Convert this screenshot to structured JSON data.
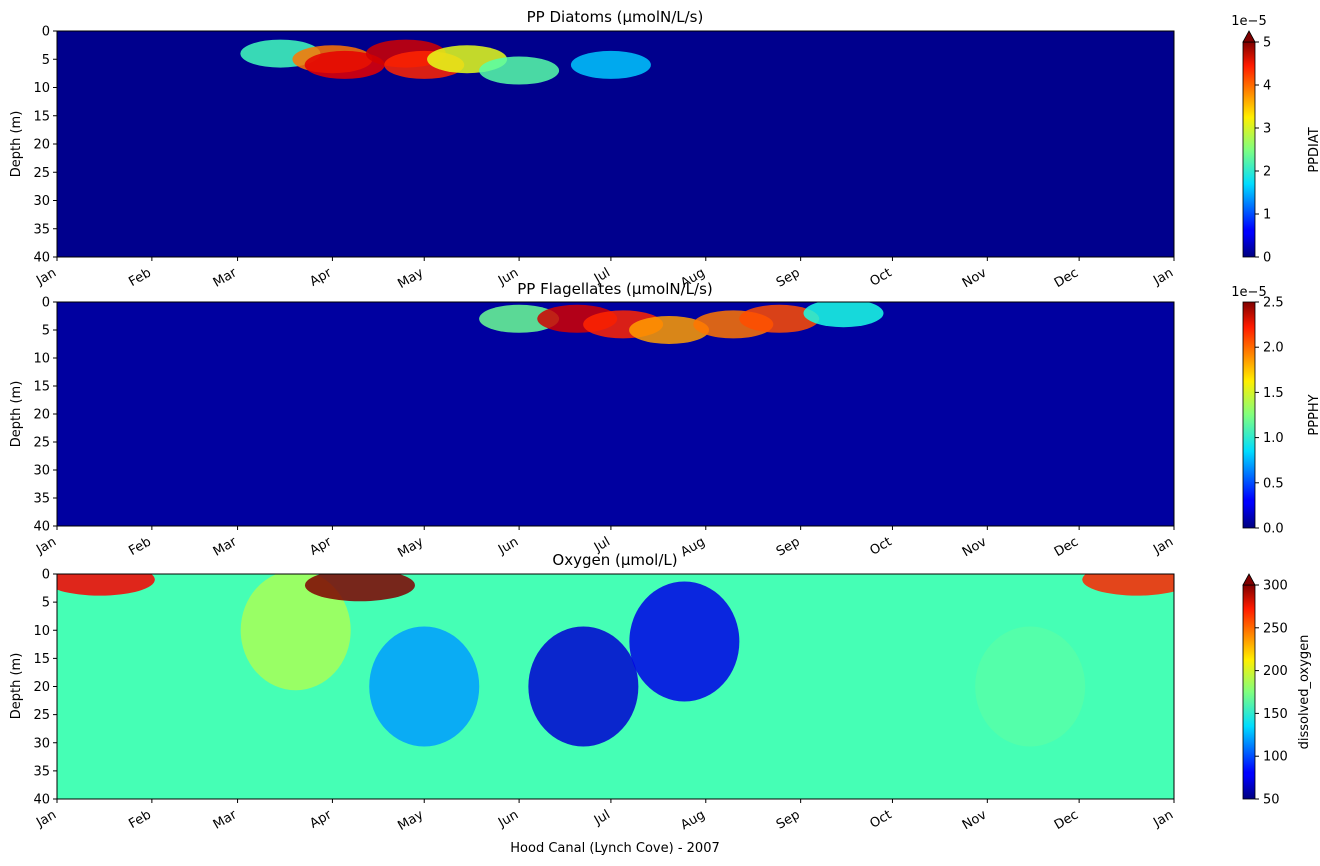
{
  "figure": {
    "xlabel": "Hood Canal (Lynch Cove) - 2007",
    "month_labels": [
      "Jan",
      "Feb",
      "Mar",
      "Apr",
      "May",
      "Jun",
      "Jul",
      "Aug",
      "Sep",
      "Oct",
      "Nov",
      "Dec",
      "Jan"
    ],
    "month_dates": [
      "2007-01-01",
      "2007-02-01",
      "2007-03-01",
      "2007-04-01",
      "2007-05-01",
      "2007-06-01",
      "2007-07-01",
      "2007-08-01",
      "2007-09-01",
      "2007-10-01",
      "2007-11-01",
      "2007-12-01",
      "2008-01-01"
    ],
    "depth_ticks": [
      "0",
      "5",
      "10",
      "15",
      "20",
      "25",
      "30",
      "35",
      "40"
    ]
  },
  "chart_data": [
    {
      "type": "heatmap",
      "title": "PP Diatoms (μmolN/L/s)",
      "ylabel": "Depth (m)",
      "xlim": [
        "2007-01-01",
        "2008-01-01"
      ],
      "ylim": [
        40,
        0
      ],
      "y_inverted": true,
      "colormap": "jet",
      "colorbar": {
        "label": "PPDIAT",
        "range": [
          0,
          5
        ],
        "scale_label": "1e−5",
        "ticks": [
          "0",
          "1",
          "2",
          "3",
          "4",
          "5"
        ],
        "extend_max": true
      },
      "features": [
        {
          "t": "2007-03-15",
          "z": 4,
          "value": 2.2
        },
        {
          "t": "2007-04-01",
          "z": 5,
          "value": 3.8
        },
        {
          "t": "2007-04-05",
          "z": 6,
          "value": 4.5
        },
        {
          "t": "2007-04-25",
          "z": 4,
          "value": 4.6
        },
        {
          "t": "2007-05-01",
          "z": 6,
          "value": 4.2
        },
        {
          "t": "2007-05-15",
          "z": 5,
          "value": 3.0
        },
        {
          "t": "2007-06-01",
          "z": 7,
          "value": 2.3
        },
        {
          "t": "2007-07-01",
          "z": 6,
          "value": 1.6
        }
      ]
    },
    {
      "type": "heatmap",
      "title": "PP Flagellates (μmolN/L/s)",
      "ylabel": "Depth (m)",
      "xlim": [
        "2007-01-01",
        "2008-01-01"
      ],
      "ylim": [
        40,
        0
      ],
      "y_inverted": true,
      "colormap": "jet",
      "colorbar": {
        "label": "PPPHY",
        "range": [
          0,
          2.5
        ],
        "scale_label": "1e−5",
        "ticks": [
          "0.0",
          "0.5",
          "1.0",
          "1.5",
          "2.0",
          "2.5"
        ],
        "extend_max": false
      },
      "features": [
        {
          "t": "2007-06-01",
          "z": 3,
          "value": 1.2
        },
        {
          "t": "2007-06-20",
          "z": 3,
          "value": 2.3
        },
        {
          "t": "2007-07-05",
          "z": 4,
          "value": 2.1
        },
        {
          "t": "2007-07-20",
          "z": 5,
          "value": 1.8
        },
        {
          "t": "2007-08-10",
          "z": 4,
          "value": 1.9
        },
        {
          "t": "2007-08-25",
          "z": 3,
          "value": 2.0
        },
        {
          "t": "2007-09-15",
          "z": 2,
          "value": 1.0
        }
      ]
    },
    {
      "type": "heatmap",
      "title": "Oxygen (μmol/L)",
      "ylabel": "Depth (m)",
      "xlim": [
        "2007-01-01",
        "2008-01-01"
      ],
      "ylim": [
        40,
        0
      ],
      "y_inverted": true,
      "colormap": "jet",
      "colorbar": {
        "label": "dissolved_oxygen",
        "range": [
          50,
          300
        ],
        "scale_label": "",
        "ticks": [
          "50",
          "100",
          "150",
          "200",
          "250",
          "300"
        ],
        "extend_max": true
      },
      "features": [
        {
          "t": "2007-01-15",
          "z": 1,
          "value": 270
        },
        {
          "t": "2007-03-20",
          "z": 10,
          "value": 185
        },
        {
          "t": "2007-04-10",
          "z": 2,
          "value": 300
        },
        {
          "t": "2007-05-01",
          "z": 20,
          "value": 120
        },
        {
          "t": "2007-06-22",
          "z": 20,
          "value": 70
        },
        {
          "t": "2007-07-25",
          "z": 12,
          "value": 75
        },
        {
          "t": "2007-11-15",
          "z": 20,
          "value": 165
        },
        {
          "t": "2007-12-20",
          "z": 1,
          "value": 260
        }
      ]
    }
  ]
}
